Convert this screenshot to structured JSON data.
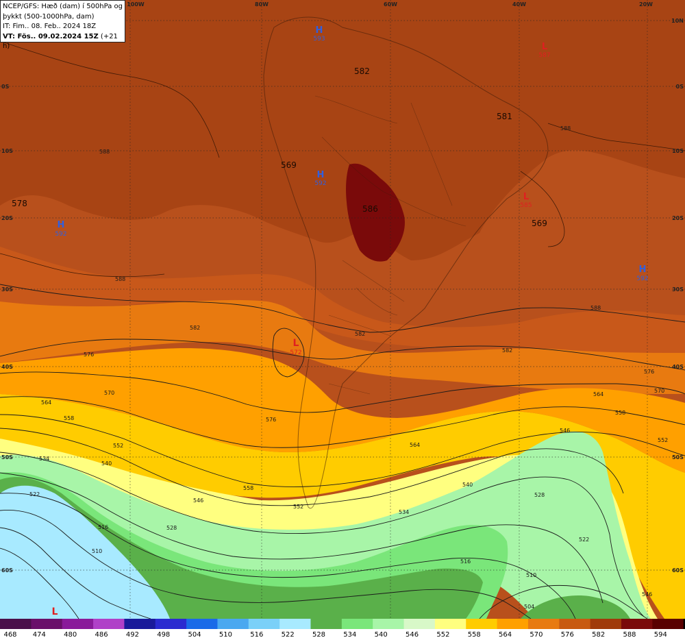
{
  "info": {
    "line1": "NCEP/GFS: Hæð (dam) í 500hPa og",
    "line2": "þykkt (500-1000hPa, dam)",
    "line3": "IT: Fim.. 08. Feb.. 2024 18Z",
    "line4_bold": "VT: Fös.. 09.02.2024 15Z",
    "line4_rest": " (+21 h)"
  },
  "lon_labels": [
    "100W",
    "80W",
    "60W",
    "40W",
    "20W"
  ],
  "lat_labels": [
    "10N",
    "0S",
    "10S",
    "20S",
    "30S",
    "40S",
    "50S",
    "60S"
  ],
  "pressure_centers": [
    {
      "type": "H",
      "value": "593",
      "color": "#2f5fe0"
    },
    {
      "type": "L",
      "value": "587",
      "color": "#e02020"
    },
    {
      "type": "H",
      "value": "592",
      "color": "#2f5fe0"
    },
    {
      "type": "H",
      "value": "592",
      "color": "#2f5fe0"
    },
    {
      "type": "L",
      "value": "585",
      "color": "#e02020"
    },
    {
      "type": "H",
      "value": "592",
      "color": "#2f5fe0"
    },
    {
      "type": "L",
      "value": "572",
      "color": "#e02020"
    },
    {
      "type": "L",
      "value": "",
      "color": "#e02020"
    }
  ],
  "thickness_labels": [
    "582",
    "581",
    "569",
    "586",
    "578",
    "569"
  ],
  "contour_labels": [
    "588",
    "588",
    "588",
    "588",
    "582",
    "582",
    "582",
    "576",
    "576",
    "576",
    "570",
    "570",
    "564",
    "564",
    "564",
    "558",
    "558",
    "558",
    "552",
    "552",
    "552",
    "546",
    "546",
    "540",
    "540",
    "534",
    "534",
    "528",
    "528",
    "522",
    "522",
    "516",
    "516",
    "510",
    "510",
    "504",
    "546"
  ],
  "legend": {
    "values": [
      "468",
      "474",
      "480",
      "486",
      "492",
      "498",
      "504",
      "510",
      "516",
      "522",
      "528",
      "534",
      "540",
      "546",
      "552",
      "558",
      "564",
      "570",
      "576",
      "582",
      "588",
      "594"
    ],
    "colors": [
      "#4a0f4a",
      "#6a0f6a",
      "#8a1a9a",
      "#b040c8",
      "#1a1a9a",
      "#2a2ad0",
      "#1a6ae8",
      "#4aa8f0",
      "#7ad0f8",
      "#a8eaff",
      "#5ab04a",
      "#7ae67a",
      "#a8f5a8",
      "#d8f8c8",
      "#ffff80",
      "#ffcc00",
      "#ffa000",
      "#e87a10",
      "#c85a10",
      "#a03a0a",
      "#7a0a0a",
      "#5a0000"
    ],
    "end_color": "#000000"
  }
}
